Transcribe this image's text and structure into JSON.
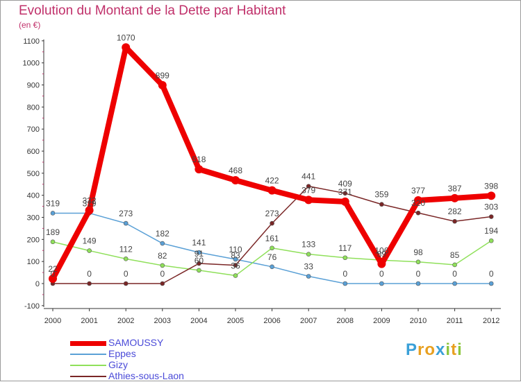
{
  "chart_data": {
    "type": "line",
    "title": "Evolution du Montant de la Dette par Habitant",
    "subtitle": "(en €)",
    "x": [
      "2000",
      "2001",
      "2002",
      "2003",
      "2004",
      "2005",
      "2006",
      "2007",
      "2008",
      "2009",
      "2010",
      "2011",
      "2012"
    ],
    "yticks": [
      "-100",
      "0",
      "100",
      "200",
      "300",
      "400",
      "500",
      "600",
      "700",
      "800",
      "900",
      "1000",
      "1100"
    ],
    "ylim": [
      -100,
      1100
    ],
    "grid": false,
    "legend_position": "bottom-left",
    "series": [
      {
        "name": "SAMOUSSY",
        "color": "#ee0000",
        "values": [
          22,
          332,
          1070,
          899,
          518,
          468,
          422,
          379,
          371,
          89,
          377,
          387,
          398
        ],
        "labels": [
          "22",
          "332",
          "1070",
          "899",
          "518",
          "468",
          "422",
          "379",
          "371",
          "89",
          "377",
          "387",
          "398"
        ]
      },
      {
        "name": "Eppes",
        "color": "#5aa0d6",
        "values": [
          319,
          319,
          273,
          182,
          141,
          110,
          76,
          33,
          0,
          0,
          0,
          0,
          0
        ],
        "labels": [
          "319",
          "319",
          "273",
          "182",
          "141",
          "110",
          "76",
          "33",
          "0",
          "0",
          "0",
          "0",
          "0"
        ]
      },
      {
        "name": "Gizy",
        "color": "#8fe05a",
        "values": [
          189,
          149,
          112,
          82,
          60,
          36,
          161,
          133,
          117,
          106,
          98,
          85,
          194
        ],
        "labels": [
          "189",
          "149",
          "112",
          "82",
          "60",
          "36",
          "161",
          "133",
          "117",
          "106",
          "98",
          "85",
          "194"
        ]
      },
      {
        "name": "Athies-sous-Laon",
        "color": "#7a2626",
        "values": [
          0,
          0,
          0,
          0,
          91,
          83,
          273,
          441,
          409,
          359,
          320,
          282,
          303
        ],
        "labels": [
          "0",
          "0",
          "0",
          "0",
          "91",
          "83",
          "273",
          "441",
          "409",
          "359",
          "320",
          "282",
          "303"
        ]
      }
    ]
  },
  "logo": {
    "letters": [
      "P",
      "r",
      "o",
      "x",
      "i",
      "t",
      "i"
    ],
    "colors": [
      "#3aa0d8",
      "#e8a020",
      "#e8a020",
      "#3aa0d8",
      "#8cc63e",
      "#e8a020",
      "#8cc63e"
    ]
  }
}
